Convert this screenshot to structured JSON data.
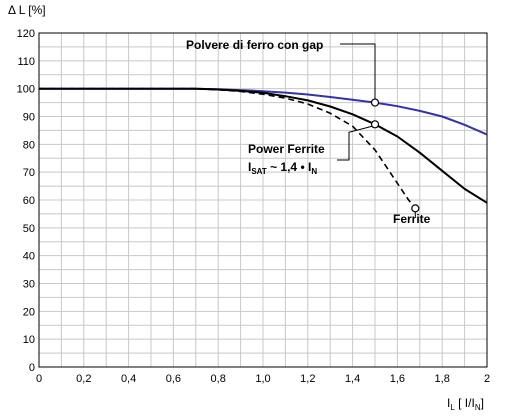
{
  "chart_data": {
    "type": "line",
    "ylabel": "Δ L  [%]",
    "xlabel": {
      "main": "I",
      "sub": "L",
      "rest": " [ I/I",
      "sub2": "N",
      "end": "]"
    },
    "xlim": [
      0,
      2
    ],
    "ylim": [
      0,
      120
    ],
    "x_ticks": [
      "0",
      "0,2",
      "0,4",
      "0,6",
      "0,8",
      "1,0",
      "1,2",
      "1,4",
      "1,6",
      "1,8",
      "2"
    ],
    "y_ticks": [
      "0",
      "10",
      "20",
      "30",
      "40",
      "50",
      "60",
      "70",
      "80",
      "90",
      "100",
      "110",
      "120"
    ],
    "grid": true,
    "series": [
      {
        "name": "Polvere di ferro con gap",
        "color": "#3333aa",
        "dash": "solid",
        "x": [
          0,
          0.7,
          0.8,
          0.9,
          1.0,
          1.1,
          1.2,
          1.3,
          1.4,
          1.5,
          1.6,
          1.7,
          1.8,
          1.9,
          2.0
        ],
        "y": [
          100,
          100,
          99.8,
          99.5,
          99.1,
          98.6,
          97.9,
          97.0,
          96.0,
          95.0,
          93.7,
          92.0,
          90.0,
          87.0,
          83.5
        ]
      },
      {
        "name": "Power Ferrite",
        "color": "#000000",
        "dash": "solid",
        "x": [
          0,
          0.7,
          0.8,
          0.9,
          1.0,
          1.1,
          1.2,
          1.3,
          1.4,
          1.5,
          1.6,
          1.7,
          1.8,
          1.9,
          2.0
        ],
        "y": [
          100,
          100,
          99.7,
          99.2,
          98.5,
          97.3,
          95.8,
          93.6,
          90.8,
          87.2,
          82.8,
          77.0,
          70.5,
          64.0,
          59.0
        ]
      },
      {
        "name": "Ferrite",
        "color": "#000000",
        "dash": "dashed",
        "x": [
          0,
          0.7,
          0.8,
          0.9,
          1.0,
          1.1,
          1.2,
          1.3,
          1.4,
          1.5,
          1.55,
          1.6,
          1.65,
          1.68
        ],
        "y": [
          100,
          100,
          99.6,
          99.0,
          98.0,
          96.6,
          94.5,
          91.2,
          86.5,
          78.0,
          72.0,
          66.0,
          60.0,
          57.0
        ]
      }
    ],
    "annotations": {
      "polvere": {
        "text": "Polvere di ferro con gap",
        "marker_x": 1.5,
        "marker_y": 95.0
      },
      "power": {
        "line1": "Power Ferrite",
        "line2_a": "I",
        "line2_sub": "SAT",
        "line2_b": " ~ 1,4 • I",
        "line2_sub2": "N",
        "marker_x": 1.5,
        "marker_y": 87.2
      },
      "ferrite": {
        "text": "Ferrite",
        "marker_x": 1.68,
        "marker_y": 57.0
      }
    }
  }
}
